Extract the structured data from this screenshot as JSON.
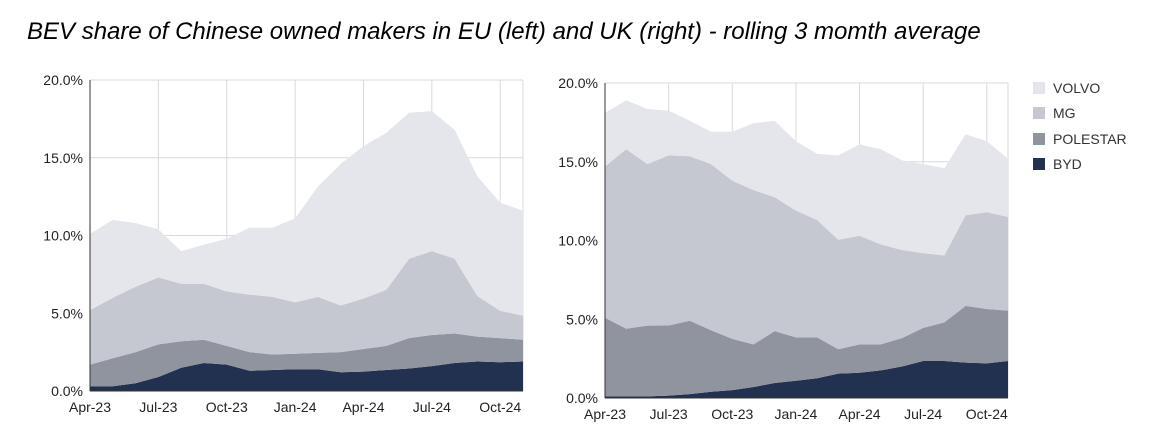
{
  "title": "BEV share of Chinese owned makers in EU (left) and UK (right)  - rolling 3 momth average",
  "legend": [
    {
      "name": "VOLVO",
      "color": "#e4e6eb"
    },
    {
      "name": "MG",
      "color": "#c6c8d1"
    },
    {
      "name": "POLESTAR",
      "color": "#8f949f"
    },
    {
      "name": "BYD",
      "color": "#233150"
    }
  ],
  "chart_data": [
    {
      "type": "area",
      "stacked": true,
      "x": [
        "Apr-23",
        "May-23",
        "Jun-23",
        "Jul-23",
        "Aug-23",
        "Sep-23",
        "Oct-23",
        "Nov-23",
        "Dec-23",
        "Jan-24",
        "Feb-24",
        "Mar-24",
        "Apr-24",
        "May-24",
        "Jun-24",
        "Jul-24",
        "Aug-24",
        "Sep-24",
        "Oct-24",
        "Nov-24"
      ],
      "x_ticks": [
        "Apr-23",
        "Jul-23",
        "Oct-23",
        "Jan-24",
        "Apr-24",
        "Jul-24",
        "Oct-24"
      ],
      "y_ticks": [
        "0.0%",
        "5.0%",
        "10.0%",
        "15.0%",
        "20.0%"
      ],
      "ylim": [
        0,
        20
      ],
      "grid": true,
      "series": [
        {
          "name": "BYD",
          "values": [
            0.3,
            0.3,
            0.5,
            0.9,
            1.5,
            1.8,
            1.7,
            1.3,
            1.35,
            1.4,
            1.4,
            1.2,
            1.25,
            1.35,
            1.45,
            1.6,
            1.8,
            1.9,
            1.85,
            1.9
          ]
        },
        {
          "name": "POLESTAR",
          "values": [
            1.4,
            1.8,
            2.0,
            2.1,
            1.7,
            1.5,
            1.2,
            1.2,
            1.0,
            1.0,
            1.05,
            1.3,
            1.45,
            1.55,
            1.95,
            2.0,
            1.9,
            1.6,
            1.55,
            1.4
          ]
        },
        {
          "name": "MG",
          "values": [
            3.5,
            3.9,
            4.2,
            4.3,
            3.7,
            3.6,
            3.5,
            3.7,
            3.7,
            3.3,
            3.6,
            3.0,
            3.25,
            3.6,
            5.1,
            5.4,
            4.8,
            2.6,
            1.75,
            1.55
          ]
        },
        {
          "name": "VOLVO",
          "values": [
            4.9,
            5.0,
            4.1,
            3.1,
            2.1,
            2.5,
            3.4,
            4.3,
            4.45,
            5.4,
            7.1,
            9.1,
            9.8,
            10.1,
            9.4,
            9.0,
            8.3,
            7.7,
            6.95,
            6.75
          ]
        }
      ]
    },
    {
      "type": "area",
      "stacked": true,
      "x": [
        "Apr-23",
        "May-23",
        "Jun-23",
        "Jul-23",
        "Aug-23",
        "Sep-23",
        "Oct-23",
        "Nov-23",
        "Dec-23",
        "Jan-24",
        "Feb-24",
        "Mar-24",
        "Apr-24",
        "May-24",
        "Jun-24",
        "Jul-24",
        "Aug-24",
        "Sep-24",
        "Oct-24",
        "Nov-24"
      ],
      "x_ticks": [
        "Apr-23",
        "Jul-23",
        "Oct-23",
        "Jan-24",
        "Apr-24",
        "Jul-24",
        "Oct-24"
      ],
      "y_ticks": [
        "0.0%",
        "5.0%",
        "10.0%",
        "15.0%",
        "20.0%"
      ],
      "ylim": [
        0,
        20
      ],
      "grid": true,
      "series": [
        {
          "name": "BYD",
          "values": [
            0.1,
            0.1,
            0.1,
            0.15,
            0.25,
            0.4,
            0.5,
            0.7,
            0.95,
            1.1,
            1.25,
            1.55,
            1.6,
            1.75,
            2.0,
            2.35,
            2.35,
            2.25,
            2.2,
            2.35
          ]
        },
        {
          "name": "POLESTAR",
          "values": [
            5.0,
            4.3,
            4.5,
            4.45,
            4.65,
            3.9,
            3.25,
            2.7,
            3.3,
            2.75,
            2.6,
            1.55,
            1.8,
            1.65,
            1.8,
            2.1,
            2.45,
            3.6,
            3.45,
            3.2
          ]
        },
        {
          "name": "MG",
          "values": [
            9.6,
            11.4,
            10.25,
            10.8,
            10.45,
            10.55,
            10.05,
            9.8,
            8.5,
            8.05,
            7.45,
            6.95,
            6.9,
            6.35,
            5.6,
            4.75,
            4.25,
            5.75,
            6.15,
            5.95
          ]
        },
        {
          "name": "VOLVO",
          "values": [
            3.4,
            3.1,
            3.5,
            2.85,
            2.25,
            2.05,
            3.1,
            4.25,
            4.85,
            4.4,
            4.2,
            5.35,
            5.8,
            6.05,
            5.7,
            5.65,
            5.55,
            5.15,
            4.5,
            3.7
          ]
        }
      ]
    }
  ]
}
